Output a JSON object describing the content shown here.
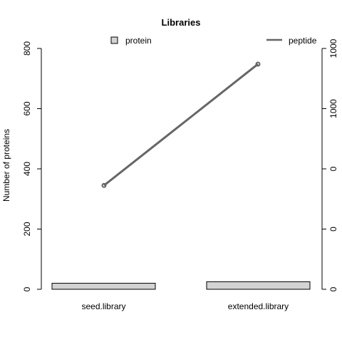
{
  "chart_data": {
    "type": "bar",
    "title": "Libraries",
    "categories": [
      "seed.library",
      "extended.library"
    ],
    "ylabel": "Number of proteins",
    "ylim": [
      0,
      800
    ],
    "yticks": [
      "0",
      "200",
      "400",
      "600",
      "800"
    ],
    "y2ticks": [
      "0",
      "0",
      "0",
      "1000",
      "1000"
    ],
    "series": [
      {
        "name": "protein",
        "type": "bar",
        "values": [
          20,
          25
        ],
        "color": "#d3d3d3"
      },
      {
        "name": "peptide",
        "type": "line",
        "values": [
          345,
          748
        ],
        "color": "#666666"
      }
    ],
    "legend": "top"
  }
}
